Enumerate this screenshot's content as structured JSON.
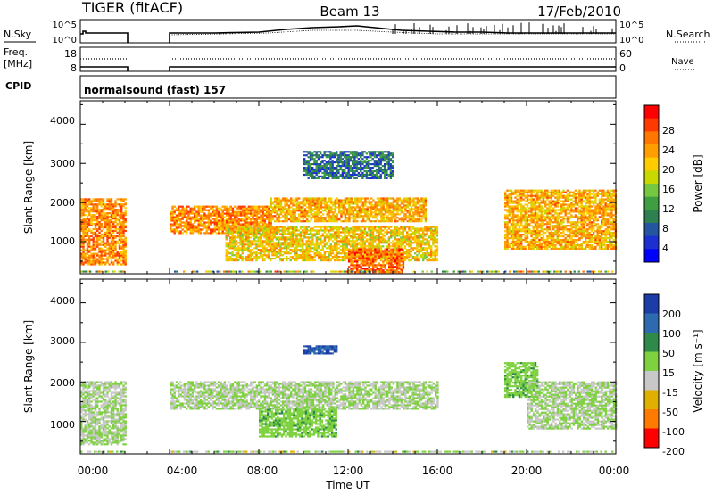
{
  "header": {
    "station": "TIGER (fitACF)",
    "beam": "Beam 13",
    "date": "17/Feb/2010"
  },
  "strip_panels": {
    "nsky_label": "N.Sky",
    "nsky_ticks": [
      "10^5",
      "10^0"
    ],
    "nsearch_label": "N.Search",
    "nsearch_ticks": [
      "10^5",
      "10^0"
    ],
    "freq_label_line1": "Freq.",
    "freq_label_line2": "[MHz]",
    "freq_ticks": [
      "18",
      "8"
    ],
    "nave_label": "Nave",
    "nave_ticks": [
      "60",
      "0"
    ],
    "cpid_label": "CPID",
    "cpid_value": "normalsound (fast) 157"
  },
  "range_panels": {
    "ylabel": "Slant Range [km]",
    "yticks": [
      "4000",
      "3000",
      "2000",
      "1000"
    ],
    "xticks": [
      "00:00",
      "04:00",
      "08:00",
      "12:00",
      "16:00",
      "20:00",
      "00:00"
    ],
    "xlabel": "Time UT"
  },
  "power_scale": {
    "label": "Power [dB]",
    "ticks": [
      "28",
      "24",
      "20",
      "16",
      "12",
      "8",
      "4"
    ],
    "colors": [
      "#ff0000",
      "#ff3a00",
      "#ff7700",
      "#ff9e00",
      "#ffcc00",
      "#c8d800",
      "#76c840",
      "#3f9e3f",
      "#2e8050",
      "#2355a0",
      "#1c2fd0",
      "#0000ff"
    ]
  },
  "velocity_scale": {
    "label": "Velocity [m s⁻¹]",
    "ticks": [
      "200",
      "100",
      "50",
      "15",
      "-15",
      "-50",
      "-100",
      "-200"
    ],
    "colors": [
      "#1c3ca8",
      "#2e6ab0",
      "#2f8a4a",
      "#7ed13f",
      "#c8c8c8",
      "#e0b000",
      "#ff7a00",
      "#ff0000"
    ]
  },
  "chart_data": {
    "type": "heatmap",
    "title": "TIGER (fitACF)  Beam 13  17/Feb/2010",
    "xlabel": "Time UT",
    "ylabel": "Slant Range [km]",
    "x_range_hours": [
      0,
      24
    ],
    "y_range_km": [
      180,
      4600
    ],
    "data_gap_hours": [
      2,
      4
    ],
    "panels": [
      {
        "name": "Power [dB]",
        "colorbar_range": [
          0,
          32
        ],
        "echo_regions": [
          {
            "t_start": 0.0,
            "t_end": 2.0,
            "range_start": 400,
            "range_end": 2100,
            "typical_db": 24
          },
          {
            "t_start": 4.0,
            "t_end": 8.5,
            "range_start": 1200,
            "range_end": 1900,
            "typical_db": 24
          },
          {
            "t_start": 8.5,
            "t_end": 15.5,
            "range_start": 1500,
            "range_end": 2100,
            "typical_db": 22
          },
          {
            "t_start": 6.5,
            "t_end": 16.0,
            "range_start": 500,
            "range_end": 1400,
            "typical_db": 20
          },
          {
            "t_start": 12.0,
            "t_end": 14.5,
            "range_start": 200,
            "range_end": 800,
            "typical_db": 26
          },
          {
            "t_start": 19.0,
            "t_end": 24.0,
            "range_start": 800,
            "range_end": 2300,
            "typical_db": 22
          },
          {
            "t_start": 10.0,
            "t_end": 14.0,
            "range_start": 2600,
            "range_end": 3300,
            "typical_db": 8
          }
        ]
      },
      {
        "name": "Velocity [m s-1]",
        "colorbar_range": [
          -200,
          200
        ],
        "echo_regions": [
          {
            "t_start": 0.0,
            "t_end": 2.0,
            "range_start": 400,
            "range_end": 2000,
            "typical_velocity": 0
          },
          {
            "t_start": 4.0,
            "t_end": 16.0,
            "range_start": 1300,
            "range_end": 2000,
            "typical_velocity": 0
          },
          {
            "t_start": 8.0,
            "t_end": 11.5,
            "range_start": 600,
            "range_end": 1300,
            "typical_velocity": 40
          },
          {
            "t_start": 10.0,
            "t_end": 11.5,
            "range_start": 2700,
            "range_end": 2900,
            "typical_velocity": 150
          },
          {
            "t_start": 19.0,
            "t_end": 20.5,
            "range_start": 1600,
            "range_end": 2500,
            "typical_velocity": 40
          },
          {
            "t_start": 20.0,
            "t_end": 24.0,
            "range_start": 800,
            "range_end": 2000,
            "typical_velocity": 0
          }
        ]
      }
    ]
  }
}
